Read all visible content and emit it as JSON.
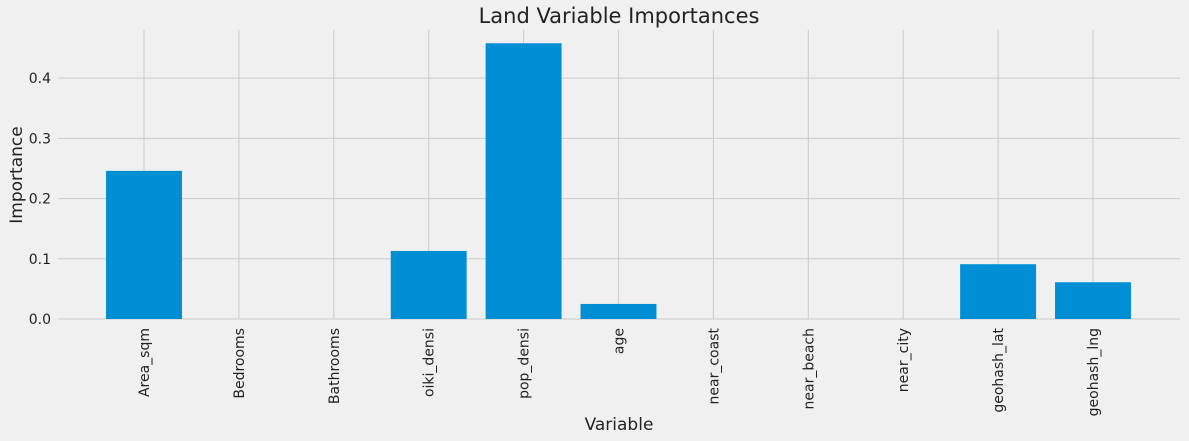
{
  "chart_data": {
    "type": "bar",
    "title": "Land Variable Importances",
    "xlabel": "Variable",
    "ylabel": "Importance",
    "categories": [
      "Area_sqm",
      "Bedrooms",
      "Bathrooms",
      "oiki_densi",
      "pop_densi",
      "age",
      "near_coast",
      "near_beach",
      "near_city",
      "geohash_lat",
      "geohash_lng"
    ],
    "values": [
      0.246,
      0.0,
      0.0,
      0.113,
      0.458,
      0.025,
      0.0,
      0.0,
      0.0,
      0.091,
      0.061
    ],
    "ylim": [
      0,
      0.48
    ],
    "yticks": [
      "0.0",
      "0.1",
      "0.2",
      "0.3",
      "0.4"
    ],
    "grid": true,
    "colors": {
      "bar": "#008fd5",
      "background": "#f0f0f0",
      "grid": "#cbcbcb"
    }
  }
}
